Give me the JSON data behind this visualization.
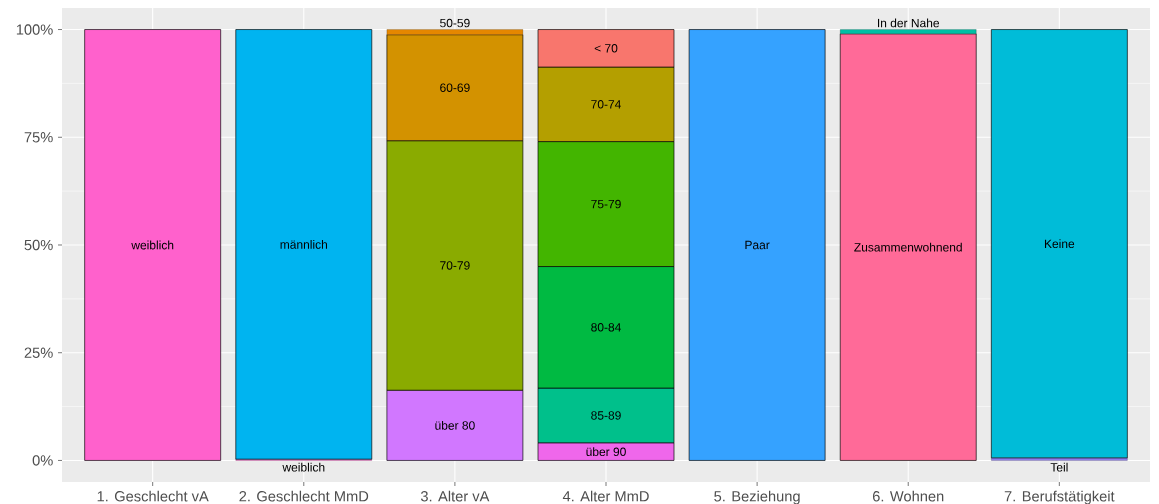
{
  "chart_data": {
    "type": "bar",
    "stacked": true,
    "grid": true,
    "categories": [
      "1. Geschlecht vA",
      "2. Geschlecht MmD",
      "3. Alter vA",
      "4. Alter MmD",
      "5. Beziehung",
      "6. Wohnen",
      "7. Berufstätigkeit"
    ],
    "ylim": [
      -5,
      105
    ],
    "yticks": [
      {
        "value": 0,
        "label": "0%"
      },
      {
        "value": 25,
        "label": "25%"
      },
      {
        "value": 50,
        "label": "50%"
      },
      {
        "value": 75,
        "label": "75%"
      },
      {
        "value": 100,
        "label": "100%"
      }
    ],
    "series": [
      {
        "name": "weiblich",
        "color": "#ff61cc",
        "values": [
          100,
          null,
          null,
          null,
          null,
          null,
          null
        ]
      },
      {
        "name": "weiblich",
        "color": "#ff61cc",
        "values": [
          null,
          0.3,
          null,
          null,
          null,
          null,
          null
        ]
      },
      {
        "name": "männlich",
        "color": "#00b4f0",
        "values": [
          null,
          99.7,
          null,
          null,
          null,
          null,
          null
        ]
      },
      {
        "name": "über 80",
        "color": "#d177ff",
        "values": [
          null,
          null,
          16.3,
          null,
          null,
          null,
          null
        ]
      },
      {
        "name": "70-79",
        "color": "#8aab00",
        "values": [
          null,
          null,
          57.9,
          null,
          null,
          null,
          null
        ]
      },
      {
        "name": "60-69",
        "color": "#d39200",
        "values": [
          null,
          null,
          24.6,
          null,
          null,
          null,
          null
        ]
      },
      {
        "name": "50-59",
        "color": "#e58700",
        "values": [
          null,
          null,
          1.2,
          null,
          null,
          null,
          null
        ]
      },
      {
        "name": "über 90",
        "color": "#ef67eb",
        "values": [
          null,
          null,
          null,
          4.1,
          null,
          null,
          null
        ]
      },
      {
        "name": "85-89",
        "color": "#00c08b",
        "values": [
          null,
          null,
          null,
          12.7,
          null,
          null,
          null
        ]
      },
      {
        "name": "80-84",
        "color": "#00ba42",
        "values": [
          null,
          null,
          null,
          28.2,
          null,
          null,
          null
        ]
      },
      {
        "name": "75-79",
        "color": "#43b500",
        "values": [
          null,
          null,
          null,
          29.0,
          null,
          null,
          null
        ]
      },
      {
        "name": "70-74",
        "color": "#b49f00",
        "values": [
          null,
          null,
          null,
          17.3,
          null,
          null,
          null
        ]
      },
      {
        "name": "< 70",
        "color": "#f8766d",
        "values": [
          null,
          null,
          null,
          8.7,
          null,
          null,
          null
        ]
      },
      {
        "name": "Paar",
        "color": "#35a2ff",
        "values": [
          null,
          null,
          null,
          null,
          100,
          null,
          null
        ]
      },
      {
        "name": "Zusammenwohnend",
        "color": "#ff6a98",
        "values": [
          null,
          null,
          null,
          null,
          null,
          99.0,
          null
        ]
      },
      {
        "name": "In der Nahe",
        "color": "#00bfa5",
        "values": [
          null,
          null,
          null,
          null,
          null,
          1.0,
          null
        ]
      },
      {
        "name": "Teil",
        "color": "#8f7fef",
        "values": [
          null,
          null,
          null,
          null,
          null,
          null,
          0.6
        ]
      },
      {
        "name": "Keine",
        "color": "#00bcd8",
        "values": [
          null,
          null,
          null,
          null,
          null,
          null,
          99.4
        ]
      }
    ]
  }
}
